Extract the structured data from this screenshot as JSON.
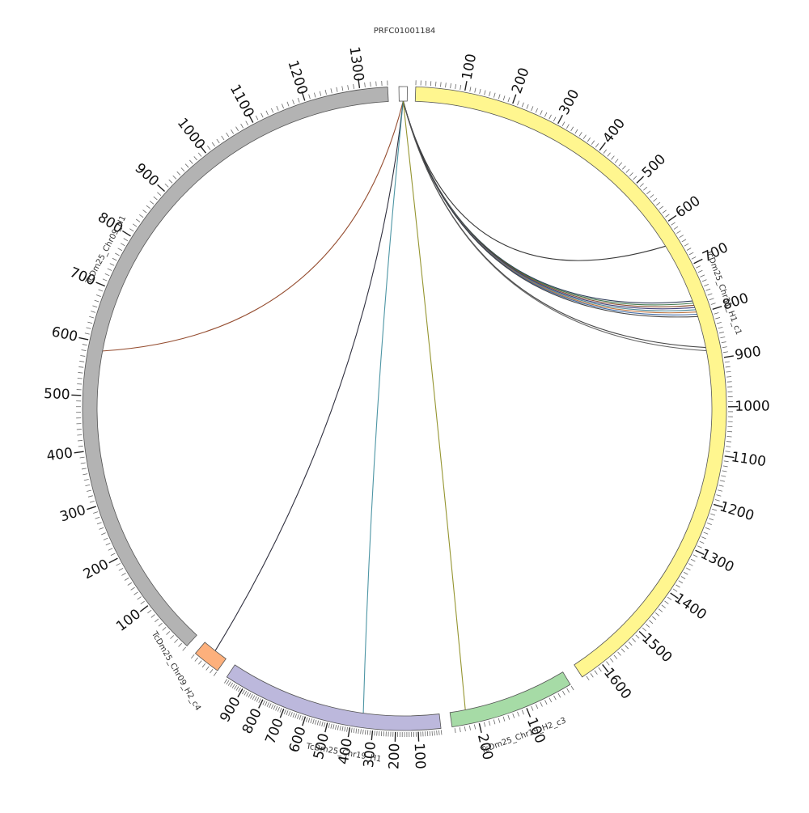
{
  "diagram": {
    "type": "circos",
    "top_label": "PRFC01001184",
    "segments": [
      {
        "id": "prfc",
        "name": "PRFC01001184",
        "color": "#ffffff",
        "length": 12,
        "ticks": []
      },
      {
        "id": "chr31",
        "name": "TcDm25_Chr31_H1_c1",
        "color": "#fff68f",
        "length": 1648,
        "ticks": [
          "100",
          "200",
          "300",
          "400",
          "500",
          "600",
          "700",
          "800",
          "900",
          "1000",
          "1100",
          "1200",
          "1300",
          "1400",
          "1500",
          "1600"
        ]
      },
      {
        "id": "chr19h2",
        "name": "TcDm25_Chr19_H2_c3",
        "color": "#a6dba6",
        "length": 255,
        "ticks": [
          "100",
          "200"
        ]
      },
      {
        "id": "chr19h1",
        "name": "TcDm25_Chr19_H1",
        "color": "#bcb8dc",
        "length": 986,
        "ticks": [
          "100",
          "200",
          "300",
          "400",
          "500",
          "600",
          "700",
          "800",
          "900"
        ]
      },
      {
        "id": "chr09h2",
        "name": "TcDm25_Chr09_H2_c4",
        "color": "#fdb07c",
        "length": 60,
        "ticks": []
      },
      {
        "id": "chr09h1",
        "name": "TcDm25_Chr09_H1",
        "color": "#b3b3b3",
        "length": 1350,
        "ticks": [
          "100",
          "200",
          "300",
          "400",
          "500",
          "600",
          "700",
          "800",
          "900",
          "1000",
          "1100",
          "1200",
          "1300"
        ]
      }
    ],
    "links": [
      {
        "to": "chr31",
        "pos": 640,
        "color": "#222222"
      },
      {
        "to": "chr31",
        "pos": 770,
        "color": "#1b2a4a"
      },
      {
        "to": "chr31",
        "pos": 775,
        "color": "#2d6a3a"
      },
      {
        "to": "chr31",
        "pos": 780,
        "color": "#7a3a1a"
      },
      {
        "to": "chr31",
        "pos": 785,
        "color": "#2a2a6a"
      },
      {
        "to": "chr31",
        "pos": 790,
        "color": "#3a7a8a"
      },
      {
        "to": "chr31",
        "pos": 795,
        "color": "#b4652a"
      },
      {
        "to": "chr31",
        "pos": 800,
        "color": "#2a5a9a"
      },
      {
        "to": "chr31",
        "pos": 805,
        "color": "#333333"
      },
      {
        "to": "chr31",
        "pos": 873,
        "color": "#333333"
      },
      {
        "to": "chr31",
        "pos": 880,
        "color": "#555555"
      },
      {
        "to": "chr09h1",
        "pos": 585,
        "color": "#8a3a1a"
      },
      {
        "to": "chr09h2",
        "pos": 30,
        "color": "#1a1a2a"
      },
      {
        "to": "chr19h1",
        "pos": 350,
        "color": "#3a8a9a"
      },
      {
        "to": "chr19h2",
        "pos": 222,
        "color": "#8a8a1a"
      }
    ]
  }
}
